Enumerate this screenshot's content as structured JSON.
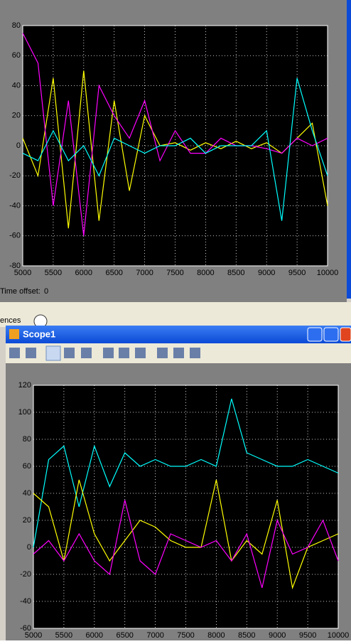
{
  "window1": {
    "time_offset_label": "Time offset:",
    "time_offset_value": "0"
  },
  "background_text": "ences",
  "window2": {
    "title": "Scope1"
  },
  "chart_data": [
    {
      "type": "line",
      "x": [
        5000,
        5250,
        5500,
        5750,
        6000,
        6250,
        6500,
        6750,
        7000,
        7250,
        7500,
        7750,
        8000,
        8250,
        8500,
        8750,
        9000,
        9250,
        9500,
        9750,
        10000
      ],
      "xlim": [
        5000,
        10000
      ],
      "xticks": [
        5000,
        5500,
        6000,
        6500,
        7000,
        7500,
        8000,
        8500,
        9000,
        9500,
        10000
      ],
      "ylim": [
        -80,
        80
      ],
      "yticks": [
        -80,
        -60,
        -40,
        -20,
        0,
        20,
        40,
        60,
        80
      ],
      "grid": true,
      "series": [
        {
          "color": "#ffff00",
          "values": [
            5,
            -20,
            45,
            -55,
            50,
            -50,
            30,
            -30,
            20,
            0,
            2,
            -3,
            2,
            -2,
            3,
            -2,
            2,
            -5,
            5,
            15,
            -40
          ]
        },
        {
          "color": "#ff00ff",
          "values": [
            75,
            55,
            -40,
            30,
            -60,
            40,
            20,
            5,
            30,
            -10,
            10,
            -5,
            -5,
            5,
            0,
            0,
            -2,
            -5,
            5,
            0,
            5
          ]
        },
        {
          "color": "#00ffff",
          "values": [
            -5,
            -10,
            10,
            -10,
            0,
            -20,
            5,
            0,
            -5,
            0,
            0,
            5,
            -5,
            0,
            0,
            0,
            10,
            -50,
            45,
            10,
            -20
          ]
        }
      ]
    },
    {
      "type": "line",
      "x": [
        5000,
        5250,
        5500,
        5750,
        6000,
        6250,
        6500,
        6750,
        7000,
        7250,
        7500,
        7750,
        8000,
        8250,
        8500,
        8750,
        9000,
        9250,
        9500,
        9750,
        10000
      ],
      "xlim": [
        5000,
        10000
      ],
      "xticks": [
        5000,
        5500,
        6000,
        6500,
        7000,
        7500,
        8000,
        8500,
        9000,
        9500,
        10000
      ],
      "ylim": [
        -60,
        120
      ],
      "yticks": [
        -60,
        -40,
        -20,
        0,
        20,
        40,
        60,
        80,
        100,
        120
      ],
      "grid": true,
      "series": [
        {
          "color": "#00ffff",
          "values": [
            0,
            65,
            75,
            30,
            75,
            45,
            70,
            60,
            65,
            60,
            60,
            65,
            60,
            110,
            70,
            65,
            60,
            60,
            65,
            60,
            55
          ]
        },
        {
          "color": "#ffff00",
          "values": [
            40,
            30,
            -10,
            50,
            10,
            -10,
            5,
            20,
            15,
            5,
            0,
            0,
            50,
            -10,
            5,
            -5,
            35,
            -30,
            0,
            5,
            10
          ]
        },
        {
          "color": "#ff00ff",
          "values": [
            -5,
            5,
            -10,
            10,
            -10,
            -20,
            35,
            -10,
            -20,
            10,
            5,
            0,
            5,
            -10,
            10,
            -30,
            20,
            -5,
            0,
            20,
            -10
          ]
        }
      ]
    }
  ]
}
